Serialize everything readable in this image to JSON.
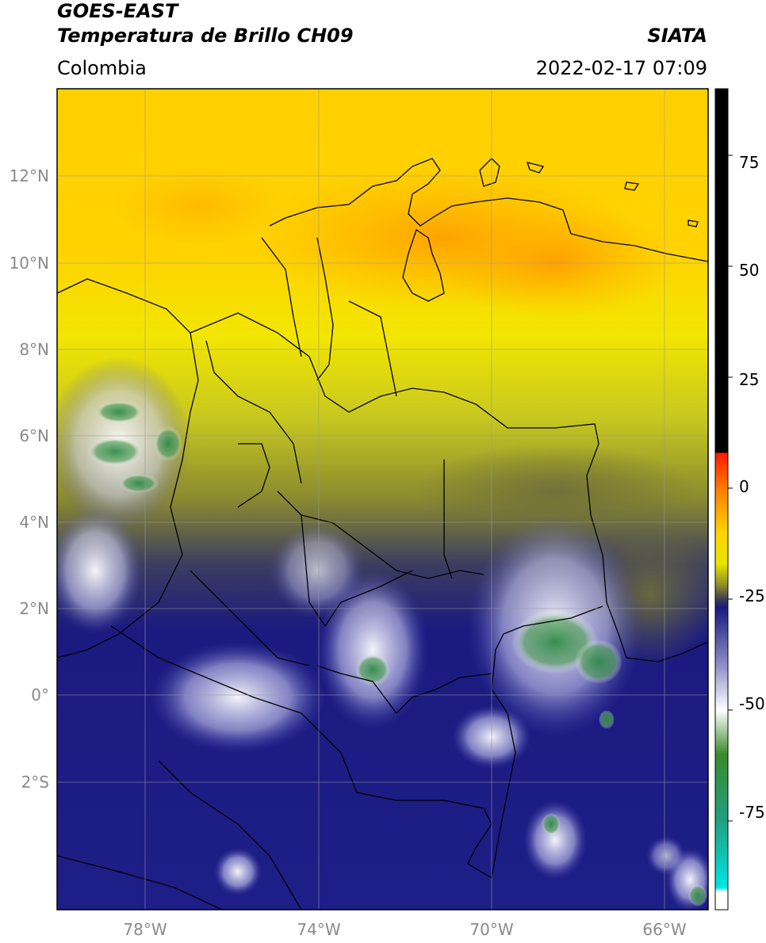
{
  "header": {
    "satellite": "GOES-EAST",
    "product": "Temperatura de Brillo CH09",
    "source": "SIATA",
    "region": "Colombia",
    "datetime": "2022-02-17 07:09"
  },
  "map": {
    "lat_labels": [
      "12°N",
      "10°N",
      "8°N",
      "6°N",
      "4°N",
      "2°N",
      "0°",
      "2°S"
    ],
    "lon_labels": [
      "78°W",
      "74°W",
      "70°W",
      "66°W"
    ],
    "gridline_color": "#9a9a9a",
    "border_color": "#000000"
  },
  "colorbar": {
    "tick_labels": [
      "75",
      "50",
      "25",
      "0",
      "-25",
      "-50",
      "-75"
    ],
    "range": [
      -95,
      90
    ],
    "stops": [
      {
        "value": 90,
        "color": "#000000"
      },
      {
        "value": 8,
        "color": "#000000"
      },
      {
        "value": 7.9,
        "color": "#ff1a00"
      },
      {
        "value": 0,
        "color": "#ff7a00"
      },
      {
        "value": -10,
        "color": "#ffd400"
      },
      {
        "value": -17,
        "color": "#e6e600"
      },
      {
        "value": -22,
        "color": "#8a8a2a"
      },
      {
        "value": -25,
        "color": "#3c3c50"
      },
      {
        "value": -27,
        "color": "#1a1a80"
      },
      {
        "value": -40,
        "color": "#8f8fc8"
      },
      {
        "value": -50,
        "color": "#ffffff"
      },
      {
        "value": -60,
        "color": "#3a8a2a"
      },
      {
        "value": -75,
        "color": "#20a080"
      },
      {
        "value": -90,
        "color": "#00e5e5"
      },
      {
        "value": -91,
        "color": "#ffffff"
      },
      {
        "value": -95,
        "color": "#ffffff"
      }
    ]
  }
}
